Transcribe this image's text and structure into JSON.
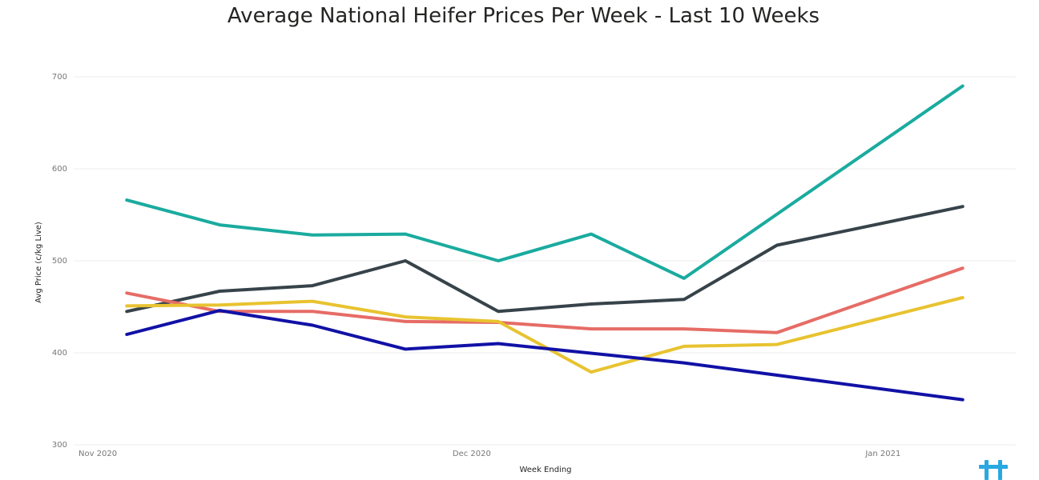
{
  "chart_data": {
    "type": "line",
    "title": "Average National Heifer Prices Per Week - Last 10 Weeks",
    "xlabel": "Week Ending",
    "ylabel": "Avg Price (c/kg Live)",
    "ylim": [
      300,
      700
    ],
    "yticks": [
      300,
      400,
      500,
      600,
      700
    ],
    "xlim": [
      "2020-11-01",
      "2021-01-11"
    ],
    "xticks": [
      {
        "date": "2020-11-01",
        "label": "Nov 2020"
      },
      {
        "date": "2020-12-01",
        "label": "Dec 2020"
      },
      {
        "date": "2021-01-01",
        "label": "Jan 2021"
      }
    ],
    "x": [
      "2020-11-05",
      "2020-11-12",
      "2020-11-19",
      "2020-11-26",
      "2020-12-03",
      "2020-12-10",
      "2020-12-17",
      "2020-12-24",
      "2020-12-31",
      "2021-01-07"
    ],
    "grid": true,
    "series": [
      {
        "color": "#1aab9f",
        "values": [
          566,
          539,
          528,
          529,
          500,
          529,
          481,
          null,
          null,
          690
        ]
      },
      {
        "color": "#37434a",
        "values": [
          445,
          467,
          473,
          500,
          445,
          453,
          458,
          517,
          null,
          559
        ]
      },
      {
        "color": "#e66c66",
        "values": [
          465,
          445,
          445,
          434,
          433,
          426,
          426,
          422,
          null,
          492
        ]
      },
      {
        "color": "#e8c330",
        "values": [
          451,
          452,
          456,
          439,
          434,
          379,
          407,
          409,
          null,
          460
        ]
      },
      {
        "color": "#1111a6",
        "values": [
          420,
          446,
          430,
          404,
          410,
          null,
          389,
          null,
          null,
          349
        ]
      }
    ]
  },
  "logo": {
    "icon": "brand-logo-icon",
    "color": "#2aa8e0"
  }
}
